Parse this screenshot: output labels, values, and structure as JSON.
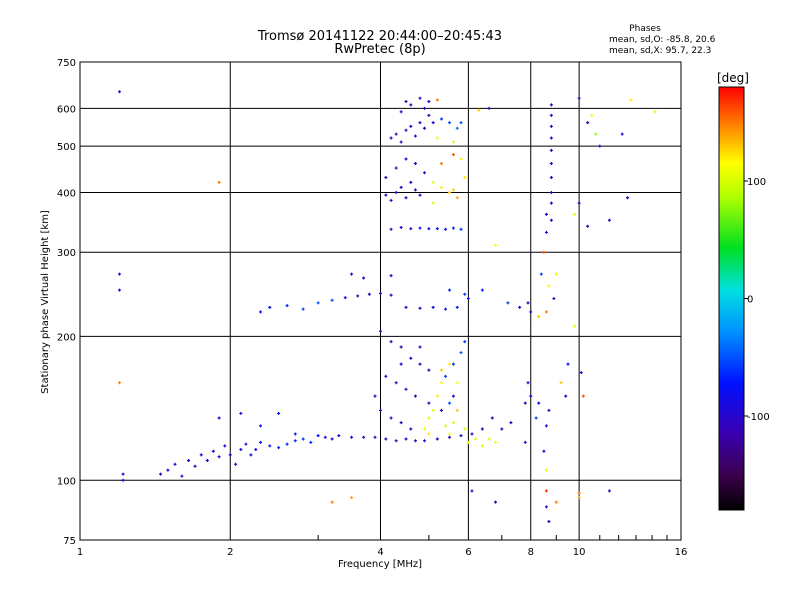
{
  "header": {
    "title_line1": "Tromsø 20141122 20:44:00–20:45:43",
    "title_line2": "RwPretec (8p)",
    "phase_title": "Phases",
    "phase_line1": "mean, sd,O: -85.8, 20.6",
    "phase_line2": "mean, sd,X:  95.7, 22.3"
  },
  "colorbar": {
    "unit_label": "[deg]",
    "ticks": [
      "100",
      "0",
      "-100"
    ],
    "tick_values": [
      100,
      0,
      -100
    ],
    "range": [
      -180,
      180
    ],
    "colormap": "rainbow (black→purple→blue→cyan→green→yellow→orange→red)"
  },
  "chart_data": {
    "type": "scatter",
    "title": "Tromsø 20141122 20:44:00–20:45:43",
    "subtitle": "RwPretec (8p)",
    "xlabel": "Frequency [MHz]",
    "ylabel": "Stationary phase Virtual Height [km]",
    "x_scale": "log",
    "y_scale": "log",
    "xlim": [
      1,
      16
    ],
    "ylim": [
      75,
      750
    ],
    "x_ticks": [
      1,
      2,
      4,
      6,
      8,
      10,
      16
    ],
    "x_tick_labels": [
      "1",
      "2",
      "4",
      "6",
      "8",
      "10",
      "16"
    ],
    "y_ticks": [
      75,
      100,
      200,
      300,
      400,
      500,
      600,
      750
    ],
    "y_tick_labels": [
      "75",
      "100",
      "200",
      "300",
      "400",
      "500",
      "600",
      "750"
    ],
    "grid": true,
    "series": [
      {
        "points": [
          [
            1.2,
            650,
            -100
          ],
          [
            1.2,
            270,
            -100
          ],
          [
            1.2,
            250,
            -100
          ],
          [
            1.22,
            103,
            -100
          ],
          [
            1.22,
            100,
            -100
          ],
          [
            1.45,
            103,
            -100
          ],
          [
            1.5,
            105,
            -100
          ],
          [
            1.55,
            108,
            -100
          ],
          [
            1.6,
            102,
            -100
          ],
          [
            1.65,
            110,
            -100
          ],
          [
            1.7,
            107,
            -100
          ],
          [
            1.75,
            113,
            -95
          ],
          [
            1.8,
            110,
            -100
          ],
          [
            1.85,
            115,
            -95
          ],
          [
            1.9,
            112,
            -100
          ],
          [
            1.95,
            118,
            -90
          ],
          [
            2.0,
            113,
            -100
          ],
          [
            2.05,
            108,
            -100
          ],
          [
            2.1,
            116,
            -90
          ],
          [
            2.15,
            119,
            -85
          ],
          [
            2.2,
            113,
            -95
          ],
          [
            2.25,
            116,
            -80
          ],
          [
            2.3,
            120,
            -80
          ],
          [
            2.4,
            118,
            -75
          ],
          [
            2.5,
            117,
            -70
          ],
          [
            2.6,
            119,
            -70
          ],
          [
            2.7,
            121,
            -65
          ],
          [
            2.8,
            122,
            -65
          ],
          [
            2.9,
            120,
            -70
          ],
          [
            3.0,
            124,
            -80
          ],
          [
            3.1,
            123,
            -90
          ],
          [
            3.2,
            122,
            -100
          ],
          [
            3.3,
            124,
            -100
          ],
          [
            3.5,
            123,
            -100
          ],
          [
            3.7,
            123,
            -110
          ],
          [
            3.9,
            123,
            -110
          ],
          [
            4.1,
            122,
            -100
          ],
          [
            4.3,
            121,
            -110
          ],
          [
            4.5,
            122,
            -100
          ],
          [
            4.7,
            121,
            -110
          ],
          [
            4.9,
            121,
            -100
          ],
          [
            5.2,
            122,
            -100
          ],
          [
            5.5,
            123,
            -110
          ],
          [
            5.8,
            124,
            -100
          ],
          [
            6.1,
            125,
            -100
          ],
          [
            6.4,
            128,
            -110
          ],
          [
            6.7,
            135,
            -120
          ],
          [
            7.0,
            128,
            -110
          ],
          [
            7.3,
            132,
            -110
          ],
          [
            1.9,
            135,
            -90
          ],
          [
            2.1,
            138,
            -90
          ],
          [
            2.3,
            130,
            -80
          ],
          [
            2.5,
            138,
            -75
          ],
          [
            2.7,
            125,
            -70
          ],
          [
            2.3,
            225,
            -80
          ],
          [
            2.4,
            230,
            -75
          ],
          [
            2.6,
            232,
            -70
          ],
          [
            2.8,
            228,
            -60
          ],
          [
            3.0,
            235,
            -50
          ],
          [
            3.2,
            238,
            -55
          ],
          [
            3.4,
            241,
            -80
          ],
          [
            3.6,
            243,
            -100
          ],
          [
            3.8,
            245,
            -110
          ],
          [
            4.0,
            246,
            -110
          ],
          [
            4.2,
            244,
            -105
          ],
          [
            3.5,
            270,
            -100
          ],
          [
            3.7,
            265,
            -100
          ],
          [
            4.2,
            268,
            -100
          ],
          [
            4.0,
            205,
            -110
          ],
          [
            4.2,
            195,
            -110
          ],
          [
            4.4,
            190,
            -115
          ],
          [
            4.6,
            180,
            -110
          ],
          [
            4.8,
            175,
            -105
          ],
          [
            5.0,
            170,
            -110
          ],
          [
            4.1,
            165,
            -110
          ],
          [
            4.3,
            160,
            -110
          ],
          [
            4.5,
            155,
            -105
          ],
          [
            4.7,
            150,
            -110
          ],
          [
            5.0,
            145,
            -110
          ],
          [
            5.3,
            140,
            -100
          ],
          [
            5.6,
            150,
            -95
          ],
          [
            3.9,
            150,
            -110
          ],
          [
            4.0,
            140,
            -110
          ],
          [
            4.2,
            135,
            -110
          ],
          [
            4.4,
            132,
            -110
          ],
          [
            4.6,
            128,
            -110
          ],
          [
            4.4,
            175,
            -100
          ],
          [
            4.8,
            190,
            -100
          ],
          [
            5.4,
            165,
            -60
          ],
          [
            5.6,
            175,
            -60
          ],
          [
            5.8,
            185,
            -50
          ],
          [
            5.9,
            195,
            -60
          ],
          [
            5.5,
            145,
            -50
          ],
          [
            5.0,
            135,
            100
          ],
          [
            5.1,
            140,
            110
          ],
          [
            5.2,
            150,
            120
          ],
          [
            5.3,
            160,
            115
          ],
          [
            5.4,
            130,
            100
          ],
          [
            5.5,
            125,
            110
          ],
          [
            5.6,
            132,
            105
          ],
          [
            5.0,
            125,
            120
          ],
          [
            4.9,
            128,
            110
          ],
          [
            5.7,
            140,
            130
          ],
          [
            5.9,
            128,
            100
          ],
          [
            6.0,
            120,
            110
          ],
          [
            6.2,
            122,
            105
          ],
          [
            6.4,
            118,
            100
          ],
          [
            6.6,
            122,
            105
          ],
          [
            6.8,
            120,
            110
          ],
          [
            5.3,
            170,
            130
          ],
          [
            5.5,
            175,
            120
          ],
          [
            5.7,
            160,
            115
          ],
          [
            4.5,
            230,
            -110
          ],
          [
            4.8,
            229,
            -100
          ],
          [
            5.1,
            230,
            -90
          ],
          [
            5.4,
            228,
            -80
          ],
          [
            5.7,
            230,
            -70
          ],
          [
            5.9,
            245,
            -60
          ],
          [
            5.5,
            250,
            -70
          ],
          [
            6.0,
            240,
            -80
          ],
          [
            4.2,
            335,
            -110
          ],
          [
            4.4,
            338,
            -100
          ],
          [
            4.6,
            336,
            -100
          ],
          [
            4.8,
            337,
            -90
          ],
          [
            5.0,
            336,
            -85
          ],
          [
            5.2,
            336,
            -80
          ],
          [
            5.4,
            335,
            -75
          ],
          [
            5.6,
            337,
            -70
          ],
          [
            5.8,
            335,
            -65
          ],
          [
            4.1,
            395,
            -110
          ],
          [
            4.2,
            385,
            -110
          ],
          [
            4.3,
            400,
            -105
          ],
          [
            4.4,
            410,
            -110
          ],
          [
            4.5,
            390,
            -100
          ],
          [
            4.6,
            420,
            -105
          ],
          [
            4.7,
            405,
            -100
          ],
          [
            4.8,
            395,
            -95
          ],
          [
            4.1,
            430,
            -110
          ],
          [
            4.3,
            450,
            -110
          ],
          [
            4.5,
            470,
            -110
          ],
          [
            4.7,
            460,
            -100
          ],
          [
            4.9,
            440,
            -100
          ],
          [
            5.1,
            420,
            110
          ],
          [
            5.3,
            410,
            120
          ],
          [
            5.5,
            400,
            130
          ],
          [
            5.7,
            390,
            140
          ],
          [
            5.9,
            430,
            120
          ],
          [
            5.3,
            460,
            150
          ],
          [
            5.6,
            480,
            160
          ],
          [
            5.8,
            470,
            120
          ],
          [
            5.1,
            380,
            100
          ],
          [
            5.6,
            405,
            130
          ],
          [
            4.2,
            520,
            -110
          ],
          [
            4.3,
            530,
            -110
          ],
          [
            4.4,
            510,
            -110
          ],
          [
            4.5,
            540,
            -100
          ],
          [
            4.6,
            550,
            -110
          ],
          [
            4.7,
            525,
            -100
          ],
          [
            4.8,
            560,
            -100
          ],
          [
            4.9,
            545,
            -100
          ],
          [
            5.0,
            580,
            -110
          ],
          [
            5.1,
            560,
            -90
          ],
          [
            4.6,
            610,
            -110
          ],
          [
            4.8,
            630,
            -100
          ],
          [
            4.9,
            600,
            -100
          ],
          [
            5.3,
            570,
            -60
          ],
          [
            5.5,
            560,
            -50
          ],
          [
            5.7,
            545,
            -40
          ],
          [
            5.8,
            560,
            -50
          ],
          [
            5.6,
            510,
            100
          ],
          [
            5.2,
            520,
            110
          ],
          [
            4.4,
            590,
            -100
          ],
          [
            5.0,
            620,
            -110
          ],
          [
            5.2,
            625,
            150
          ],
          [
            6.3,
            595,
            130
          ],
          [
            6.6,
            600,
            -110
          ],
          [
            6.4,
            250,
            -80
          ],
          [
            6.8,
            310,
            110
          ],
          [
            7.2,
            235,
            -60
          ],
          [
            7.6,
            230,
            -110
          ],
          [
            7.9,
            235,
            -110
          ],
          [
            8.0,
            225,
            -110
          ],
          [
            8.3,
            220,
            130
          ],
          [
            8.6,
            225,
            150
          ],
          [
            8.7,
            140,
            -110
          ],
          [
            8.6,
            130,
            -100
          ],
          [
            8.0,
            150,
            -100
          ],
          [
            7.8,
            145,
            -110
          ],
          [
            7.8,
            120,
            -105
          ],
          [
            8.2,
            135,
            -60
          ],
          [
            8.3,
            145,
            -80
          ],
          [
            7.9,
            160,
            -100
          ],
          [
            8.5,
            115,
            -100
          ],
          [
            8.6,
            105,
            110
          ],
          [
            8.6,
            95,
            170
          ],
          [
            8.6,
            88,
            -100
          ],
          [
            8.7,
            82,
            -100
          ],
          [
            9.0,
            90,
            150
          ],
          [
            6.1,
            95,
            -110
          ],
          [
            6.8,
            90,
            -110
          ],
          [
            10.0,
            94,
            150
          ],
          [
            10.0,
            92,
            140
          ],
          [
            11.5,
            95,
            -100
          ],
          [
            8.8,
            430,
            -110
          ],
          [
            8.8,
            460,
            -110
          ],
          [
            8.8,
            490,
            -110
          ],
          [
            8.8,
            520,
            -110
          ],
          [
            8.8,
            550,
            -110
          ],
          [
            8.8,
            580,
            -110
          ],
          [
            8.8,
            610,
            -110
          ],
          [
            8.8,
            400,
            -110
          ],
          [
            8.8,
            380,
            -110
          ],
          [
            8.8,
            350,
            -110
          ],
          [
            8.6,
            360,
            -100
          ],
          [
            8.6,
            330,
            -80
          ],
          [
            8.5,
            300,
            160
          ],
          [
            8.4,
            270,
            -60
          ],
          [
            8.7,
            255,
            120
          ],
          [
            9.0,
            270,
            110
          ],
          [
            8.9,
            240,
            -100
          ],
          [
            10.0,
            630,
            -110
          ],
          [
            10.0,
            380,
            -100
          ],
          [
            10.4,
            340,
            -110
          ],
          [
            10.6,
            580,
            110
          ],
          [
            10.8,
            530,
            80
          ],
          [
            11.0,
            500,
            -110
          ],
          [
            11.5,
            350,
            -100
          ],
          [
            12.2,
            530,
            -110
          ],
          [
            12.5,
            390,
            -110
          ],
          [
            12.7,
            625,
            120
          ],
          [
            14.2,
            590,
            100
          ],
          [
            9.8,
            360,
            100
          ],
          [
            10.4,
            560,
            -110
          ],
          [
            9.8,
            210,
            110
          ],
          [
            10.1,
            168,
            -100
          ],
          [
            9.5,
            175,
            -80
          ],
          [
            9.2,
            160,
            130
          ],
          [
            9.4,
            150,
            -100
          ],
          [
            10.2,
            150,
            160
          ],
          [
            1.9,
            420,
            150
          ],
          [
            3.2,
            90,
            150
          ],
          [
            3.5,
            92,
            140
          ],
          [
            4.5,
            620,
            -110
          ],
          [
            1.2,
            160,
            150
          ]
        ]
      }
    ]
  }
}
